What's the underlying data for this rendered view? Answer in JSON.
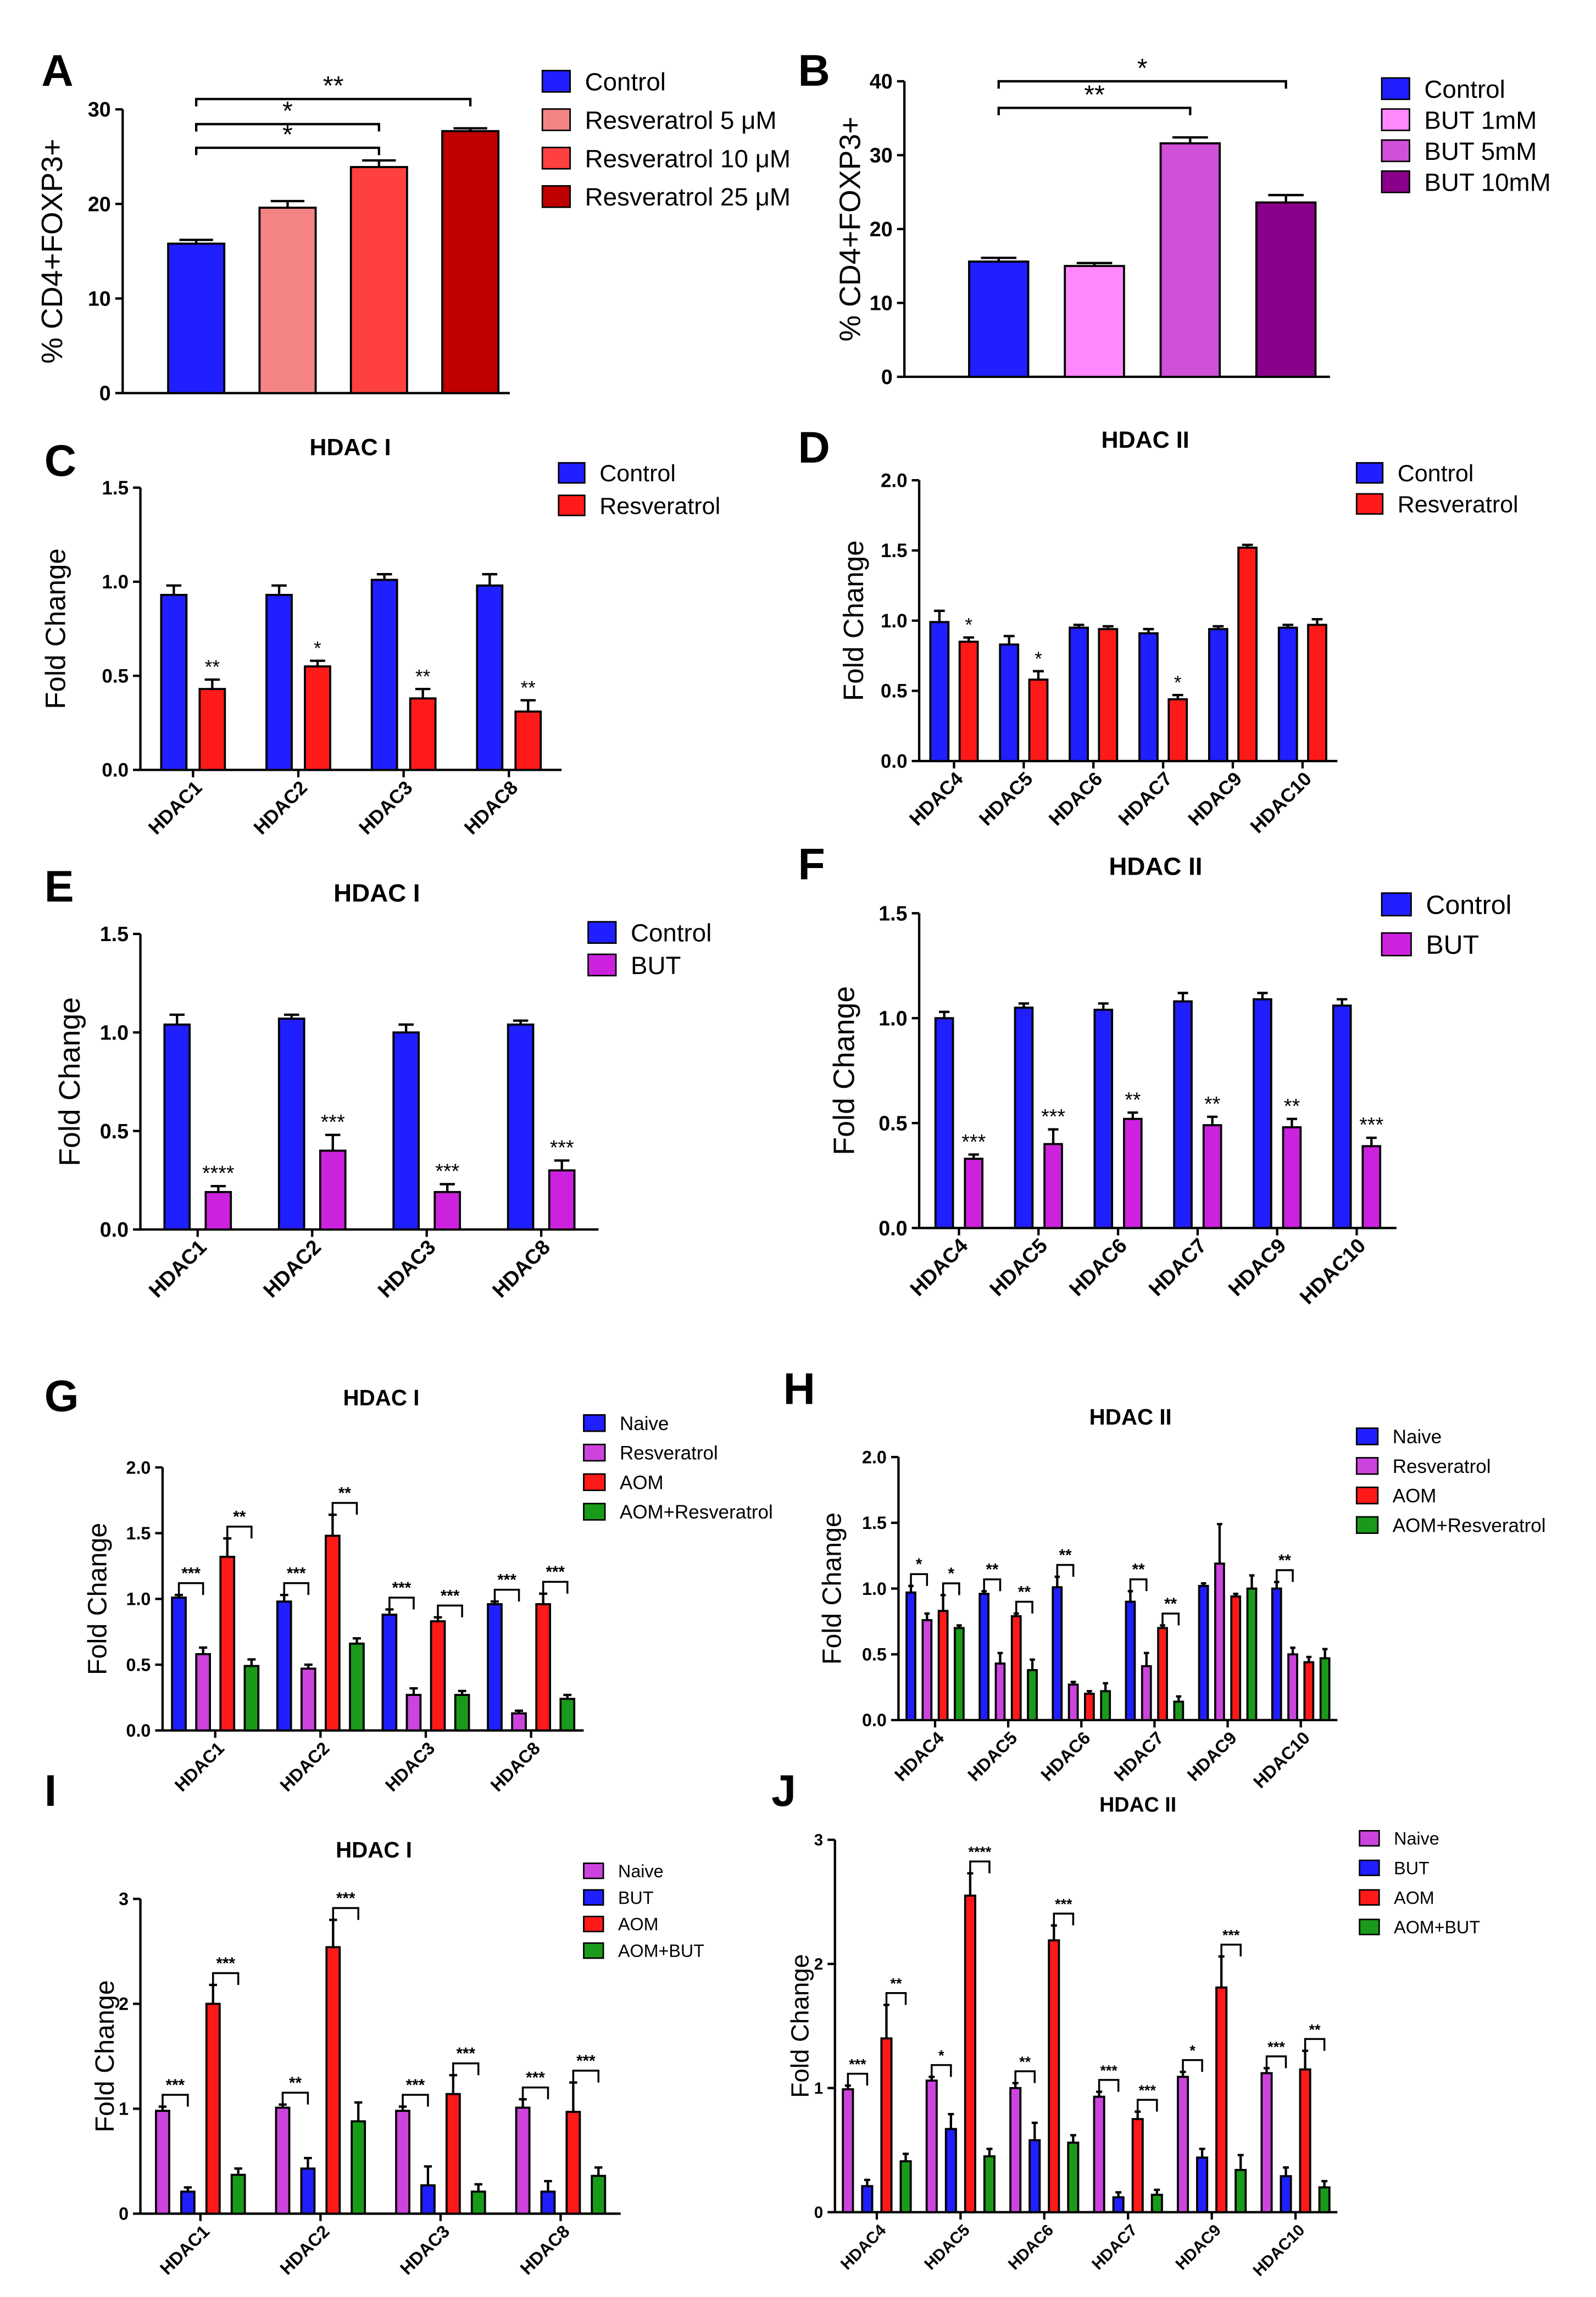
{
  "chart_data": [
    {
      "type": "bar",
      "panel_label": "A",
      "ylabel": "% CD4+FOXP3+",
      "categories": [
        null
      ],
      "ylim": [
        0,
        30
      ],
      "yticks": [
        0,
        10,
        20,
        30
      ],
      "series": [
        {
          "name": "Control",
          "color": "#1f1fff",
          "values": [
            15.8
          ],
          "errors": [
            0.4
          ]
        },
        {
          "name": "Resveratrol 5 μM",
          "color": "#f48484",
          "values": [
            19.6
          ],
          "errors": [
            0.7
          ]
        },
        {
          "name": "Resveratrol 10 μM",
          "color": "#ff4040",
          "values": [
            23.9
          ],
          "errors": [
            0.7
          ]
        },
        {
          "name": "Resveratrol 25 μM",
          "color": "#c00000",
          "values": [
            27.7
          ],
          "errors": [
            0.3
          ]
        }
      ],
      "brackets": [
        "*",
        "*",
        "**"
      ]
    },
    {
      "type": "bar",
      "panel_label": "B",
      "ylabel": "% CD4+FOXP3+",
      "categories": [
        null
      ],
      "ylim": [
        0,
        40
      ],
      "yticks": [
        0,
        10,
        20,
        30,
        40
      ],
      "series": [
        {
          "name": "Control",
          "color": "#1f1fff",
          "values": [
            15.6
          ],
          "errors": [
            0.5
          ]
        },
        {
          "name": "BUT 1mM",
          "color": "#ff88ff",
          "values": [
            15.0
          ],
          "errors": [
            0.4
          ]
        },
        {
          "name": "BUT 5mM",
          "color": "#d050d8",
          "values": [
            31.6
          ],
          "errors": [
            0.8
          ]
        },
        {
          "name": "BUT 10mM",
          "color": "#8b008b",
          "values": [
            23.6
          ],
          "errors": [
            1.0
          ]
        }
      ],
      "brackets": [
        "**",
        "*"
      ]
    },
    {
      "type": "bar",
      "panel_label": "C",
      "title": "HDAC I",
      "ylabel": "Fold Change",
      "categories": [
        "HDAC1",
        "HDAC2",
        "HDAC3",
        "HDAC8"
      ],
      "ylim": [
        0,
        1.5
      ],
      "yticks": [
        {
          "value": 0,
          "label": "0.0"
        },
        0.5,
        {
          "value": 1,
          "label": "1.0"
        },
        1.5
      ],
      "series": [
        {
          "name": "Control",
          "color": "#1f1fff",
          "values": [
            0.93,
            0.93,
            1.01,
            0.98
          ],
          "errors": [
            0.05,
            0.05,
            0.03,
            0.06
          ]
        },
        {
          "name": "Resveratrol",
          "color": "#ff1a1a",
          "values": [
            0.43,
            0.55,
            0.38,
            0.31
          ],
          "errors": [
            0.05,
            0.03,
            0.05,
            0.06
          ]
        }
      ],
      "significance": [
        "**",
        "*",
        "**",
        "**"
      ]
    },
    {
      "type": "bar",
      "panel_label": "D",
      "title": "HDAC II",
      "ylabel": "Fold Change",
      "categories": [
        "HDAC4",
        "HDAC5",
        "HDAC6",
        "HDAC7",
        "HDAC9",
        "HDAC10"
      ],
      "ylim": [
        0,
        2
      ],
      "yticks": [
        {
          "value": 0,
          "label": "0.0"
        },
        0.5,
        {
          "value": 1,
          "label": "1.0"
        },
        1.5,
        {
          "value": 2,
          "label": "2.0"
        }
      ],
      "series": [
        {
          "name": "Control",
          "color": "#1f1fff",
          "values": [
            0.99,
            0.83,
            0.95,
            0.91,
            0.94,
            0.95
          ],
          "errors": [
            0.08,
            0.06,
            0.02,
            0.03,
            0.02,
            0.02
          ]
        },
        {
          "name": "Resveratrol",
          "color": "#ff1a1a",
          "values": [
            0.85,
            0.58,
            0.94,
            0.44,
            1.52,
            0.97
          ],
          "errors": [
            0.03,
            0.06,
            0.02,
            0.03,
            0.02,
            0.04
          ]
        }
      ],
      "significance": [
        "*",
        "*",
        null,
        "*",
        null,
        null
      ]
    },
    {
      "type": "bar",
      "panel_label": "E",
      "title": "HDAC I",
      "ylabel": "Fold Change",
      "categories": [
        "HDAC1",
        "HDAC2",
        "HDAC3",
        "HDAC8"
      ],
      "ylim": [
        0,
        1.5
      ],
      "yticks": [
        {
          "value": 0,
          "label": "0.0"
        },
        0.5,
        {
          "value": 1,
          "label": "1.0"
        },
        1.5
      ],
      "series": [
        {
          "name": "Control",
          "color": "#1f1fff",
          "values": [
            1.04,
            1.07,
            1.0,
            1.04
          ],
          "errors": [
            0.05,
            0.02,
            0.04,
            0.02
          ]
        },
        {
          "name": "BUT",
          "color": "#cc22dd",
          "values": [
            0.19,
            0.4,
            0.19,
            0.3
          ],
          "errors": [
            0.03,
            0.08,
            0.04,
            0.05
          ]
        }
      ],
      "significance": [
        "****",
        "***",
        "***",
        "***"
      ]
    },
    {
      "type": "bar",
      "panel_label": "F",
      "title": "HDAC II",
      "ylabel": "Fold Change",
      "categories": [
        "HDAC4",
        "HDAC5",
        "HDAC6",
        "HDAC7",
        "HDAC9",
        "HDAC10"
      ],
      "ylim": [
        0,
        1.5
      ],
      "yticks": [
        {
          "value": 0,
          "label": "0.0"
        },
        0.5,
        {
          "value": 1,
          "label": "1.0"
        },
        1.5
      ],
      "series": [
        {
          "name": "Control",
          "color": "#1f1fff",
          "values": [
            1.0,
            1.05,
            1.04,
            1.08,
            1.09,
            1.06
          ],
          "errors": [
            0.03,
            0.02,
            0.03,
            0.04,
            0.03,
            0.03
          ]
        },
        {
          "name": "BUT",
          "color": "#cc22dd",
          "values": [
            0.33,
            0.4,
            0.52,
            0.49,
            0.48,
            0.39
          ],
          "errors": [
            0.02,
            0.07,
            0.03,
            0.04,
            0.04,
            0.04
          ]
        }
      ],
      "significance": [
        "***",
        "***",
        "**",
        "**",
        "**",
        "***"
      ]
    },
    {
      "type": "bar",
      "panel_label": "G",
      "title": "HDAC I",
      "ylabel": "Fold Change",
      "categories": [
        "HDAC1",
        "HDAC2",
        "HDAC3",
        "HDAC8"
      ],
      "ylim": [
        0,
        2
      ],
      "yticks": [
        {
          "value": 0,
          "label": "0.0"
        },
        0.5,
        {
          "value": 1,
          "label": "1.0"
        },
        1.5,
        {
          "value": 2,
          "label": "2.0"
        }
      ],
      "series": [
        {
          "name": "Naive",
          "color": "#1f1fff",
          "values": [
            1.01,
            0.98,
            0.88,
            0.96
          ],
          "errors": [
            0.02,
            0.05,
            0.04,
            0.02
          ]
        },
        {
          "name": "Resveratrol",
          "color": "#cc44dd",
          "values": [
            0.58,
            0.47,
            0.27,
            0.13
          ],
          "errors": [
            0.05,
            0.03,
            0.05,
            0.02
          ]
        },
        {
          "name": "AOM",
          "color": "#ff1a1a",
          "values": [
            1.32,
            1.48,
            0.83,
            0.96
          ],
          "errors": [
            0.14,
            0.16,
            0.03,
            0.08
          ]
        },
        {
          "name": "AOM+Resveratrol",
          "color": "#1a9a1a",
          "values": [
            0.49,
            0.66,
            0.27,
            0.24
          ],
          "errors": [
            0.05,
            0.04,
            0.03,
            0.03
          ]
        }
      ],
      "brackets": [
        [
          "***",
          "**"
        ],
        [
          "***",
          "**"
        ],
        [
          "***",
          "***"
        ],
        [
          "***",
          "***"
        ]
      ]
    },
    {
      "type": "bar",
      "panel_label": "H",
      "title": "HDAC II",
      "ylabel": "Fold Change",
      "categories": [
        "HDAC4",
        "HDAC5",
        "HDAC6",
        "HDAC7",
        "HDAC9",
        "HDAC10"
      ],
      "ylim": [
        0,
        2
      ],
      "yticks": [
        {
          "value": 0,
          "label": "0.0"
        },
        0.5,
        {
          "value": 1,
          "label": "1.0"
        },
        1.5,
        {
          "value": 2,
          "label": "2.0"
        }
      ],
      "series": [
        {
          "name": "Naive",
          "color": "#1f1fff",
          "values": [
            0.97,
            0.96,
            1.01,
            0.9,
            1.02,
            1.0
          ],
          "errors": [
            0.05,
            0.02,
            0.08,
            0.08,
            0.02,
            0.05
          ]
        },
        {
          "name": "Resveratrol",
          "color": "#cc44dd",
          "values": [
            0.76,
            0.43,
            0.27,
            0.41,
            1.19,
            0.5
          ],
          "errors": [
            0.05,
            0.08,
            0.02,
            0.1,
            0.3,
            0.05
          ]
        },
        {
          "name": "AOM",
          "color": "#ff1a1a",
          "values": [
            0.83,
            0.79,
            0.2,
            0.7,
            0.94,
            0.44
          ],
          "errors": [
            0.12,
            0.02,
            0.02,
            0.02,
            0.02,
            0.04
          ]
        },
        {
          "name": "AOM+Resveratrol",
          "color": "#1a9a1a",
          "values": [
            0.7,
            0.38,
            0.22,
            0.14,
            1.0,
            0.47
          ],
          "errors": [
            0.02,
            0.08,
            0.06,
            0.04,
            0.1,
            0.07
          ]
        }
      ],
      "brackets": [
        [
          "*",
          "*"
        ],
        [
          "**",
          "**"
        ],
        [
          "**",
          null
        ],
        [
          "**",
          "**"
        ],
        [
          null,
          null
        ],
        [
          "**",
          null
        ]
      ]
    },
    {
      "type": "bar",
      "panel_label": "I",
      "title": "HDAC I",
      "ylabel": "Fold Change",
      "categories": [
        "HDAC1",
        "HDAC2",
        "HDAC3",
        "HDAC8"
      ],
      "ylim": [
        0,
        3
      ],
      "yticks": [
        0,
        1,
        2,
        3
      ],
      "series": [
        {
          "name": "Naive",
          "color": "#cc44dd",
          "values": [
            0.98,
            1.01,
            0.98,
            1.01
          ],
          "errors": [
            0.04,
            0.03,
            0.04,
            0.08
          ]
        },
        {
          "name": "BUT",
          "color": "#1f1fff",
          "values": [
            0.21,
            0.43,
            0.27,
            0.21
          ],
          "errors": [
            0.04,
            0.1,
            0.18,
            0.1
          ]
        },
        {
          "name": "AOM",
          "color": "#ff1a1a",
          "values": [
            2.0,
            2.54,
            1.14,
            0.97
          ],
          "errors": [
            0.18,
            0.26,
            0.18,
            0.28
          ]
        },
        {
          "name": "AOM+BUT",
          "color": "#1a9a1a",
          "values": [
            0.37,
            0.88,
            0.21,
            0.36
          ],
          "errors": [
            0.06,
            0.18,
            0.07,
            0.08
          ]
        }
      ],
      "brackets": [
        [
          "***",
          "***"
        ],
        [
          "**",
          "***"
        ],
        [
          "***",
          "***"
        ],
        [
          "***",
          "***"
        ]
      ]
    },
    {
      "type": "bar",
      "panel_label": "J",
      "title": "HDAC II",
      "ylabel": "Fold Change",
      "categories": [
        "HDAC4",
        "HDAC5",
        "HDAC6",
        "HDAC7",
        "HDAC9",
        "HDAC10"
      ],
      "ylim": [
        0,
        3
      ],
      "yticks": [
        0,
        1,
        2,
        3
      ],
      "series": [
        {
          "name": "Naive",
          "color": "#cc44dd",
          "values": [
            0.99,
            1.06,
            1.0,
            0.93,
            1.09,
            1.12
          ],
          "errors": [
            0.03,
            0.03,
            0.04,
            0.04,
            0.04,
            0.04
          ]
        },
        {
          "name": "BUT",
          "color": "#1f1fff",
          "values": [
            0.21,
            0.67,
            0.58,
            0.12,
            0.44,
            0.29
          ],
          "errors": [
            0.05,
            0.12,
            0.14,
            0.04,
            0.07,
            0.07
          ]
        },
        {
          "name": "AOM",
          "color": "#ff1a1a",
          "values": [
            1.4,
            2.55,
            2.19,
            0.75,
            1.81,
            1.15
          ],
          "errors": [
            0.27,
            0.18,
            0.12,
            0.06,
            0.25,
            0.15
          ]
        },
        {
          "name": "AOM+BUT",
          "color": "#1a9a1a",
          "values": [
            0.41,
            0.45,
            0.56,
            0.14,
            0.34,
            0.2
          ],
          "errors": [
            0.06,
            0.06,
            0.06,
            0.04,
            0.12,
            0.05
          ]
        }
      ],
      "brackets": [
        [
          "***",
          "**"
        ],
        [
          "*",
          "****"
        ],
        [
          "**",
          "***"
        ],
        [
          "***",
          "***"
        ],
        [
          "*",
          "***"
        ],
        [
          "***",
          "**"
        ]
      ]
    }
  ]
}
